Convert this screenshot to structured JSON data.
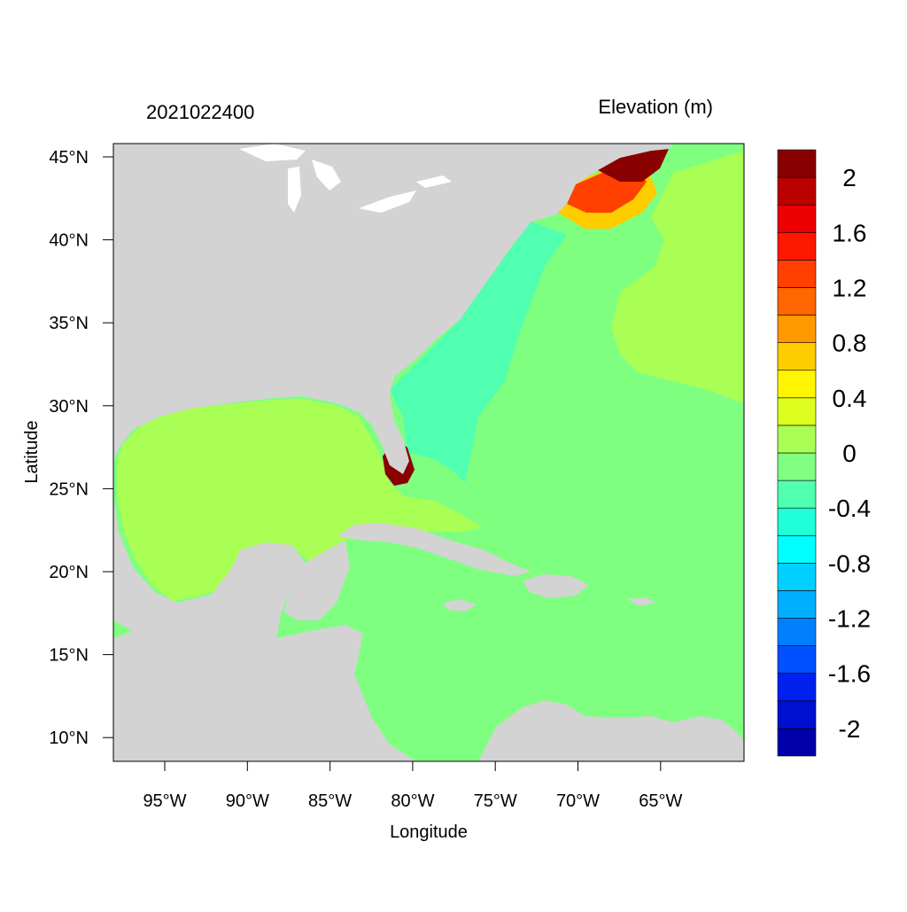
{
  "header": {
    "date_label": "2021022400",
    "variable_label": "Elevation (m)"
  },
  "axes": {
    "xlabel": "Longitude",
    "ylabel": "Latitude",
    "x_ticks": [
      "95°W",
      "90°W",
      "85°W",
      "80°W",
      "75°W",
      "70°W",
      "65°W"
    ],
    "y_ticks": [
      "45°N",
      "40°N",
      "35°N",
      "30°N",
      "25°N",
      "20°N",
      "15°N",
      "10°N"
    ]
  },
  "colorbar": {
    "colors": [
      "#0000AA",
      "#0010D0",
      "#0020F0",
      "#0050FF",
      "#0080FF",
      "#00B0FF",
      "#00D0FF",
      "#00FFFF",
      "#20FFD8",
      "#50FFB0",
      "#80FF80",
      "#AAFF55",
      "#DDFF20",
      "#FFF500",
      "#FFCC00",
      "#FF9900",
      "#FF6600",
      "#FF4000",
      "#FF1800",
      "#EE0000",
      "#BB0000",
      "#880000"
    ],
    "labels": [
      "-2",
      "-1.6",
      "-1.2",
      "-0.8",
      "-0.4",
      "0",
      "0.4",
      "0.8",
      "1.2",
      "1.6",
      "2"
    ]
  },
  "map": {
    "land_color": "#D3D3D3",
    "ocean_color": "#7FFF80",
    "gulf_color": "#AAFF55",
    "shelf_color": "#50FFB0"
  }
}
